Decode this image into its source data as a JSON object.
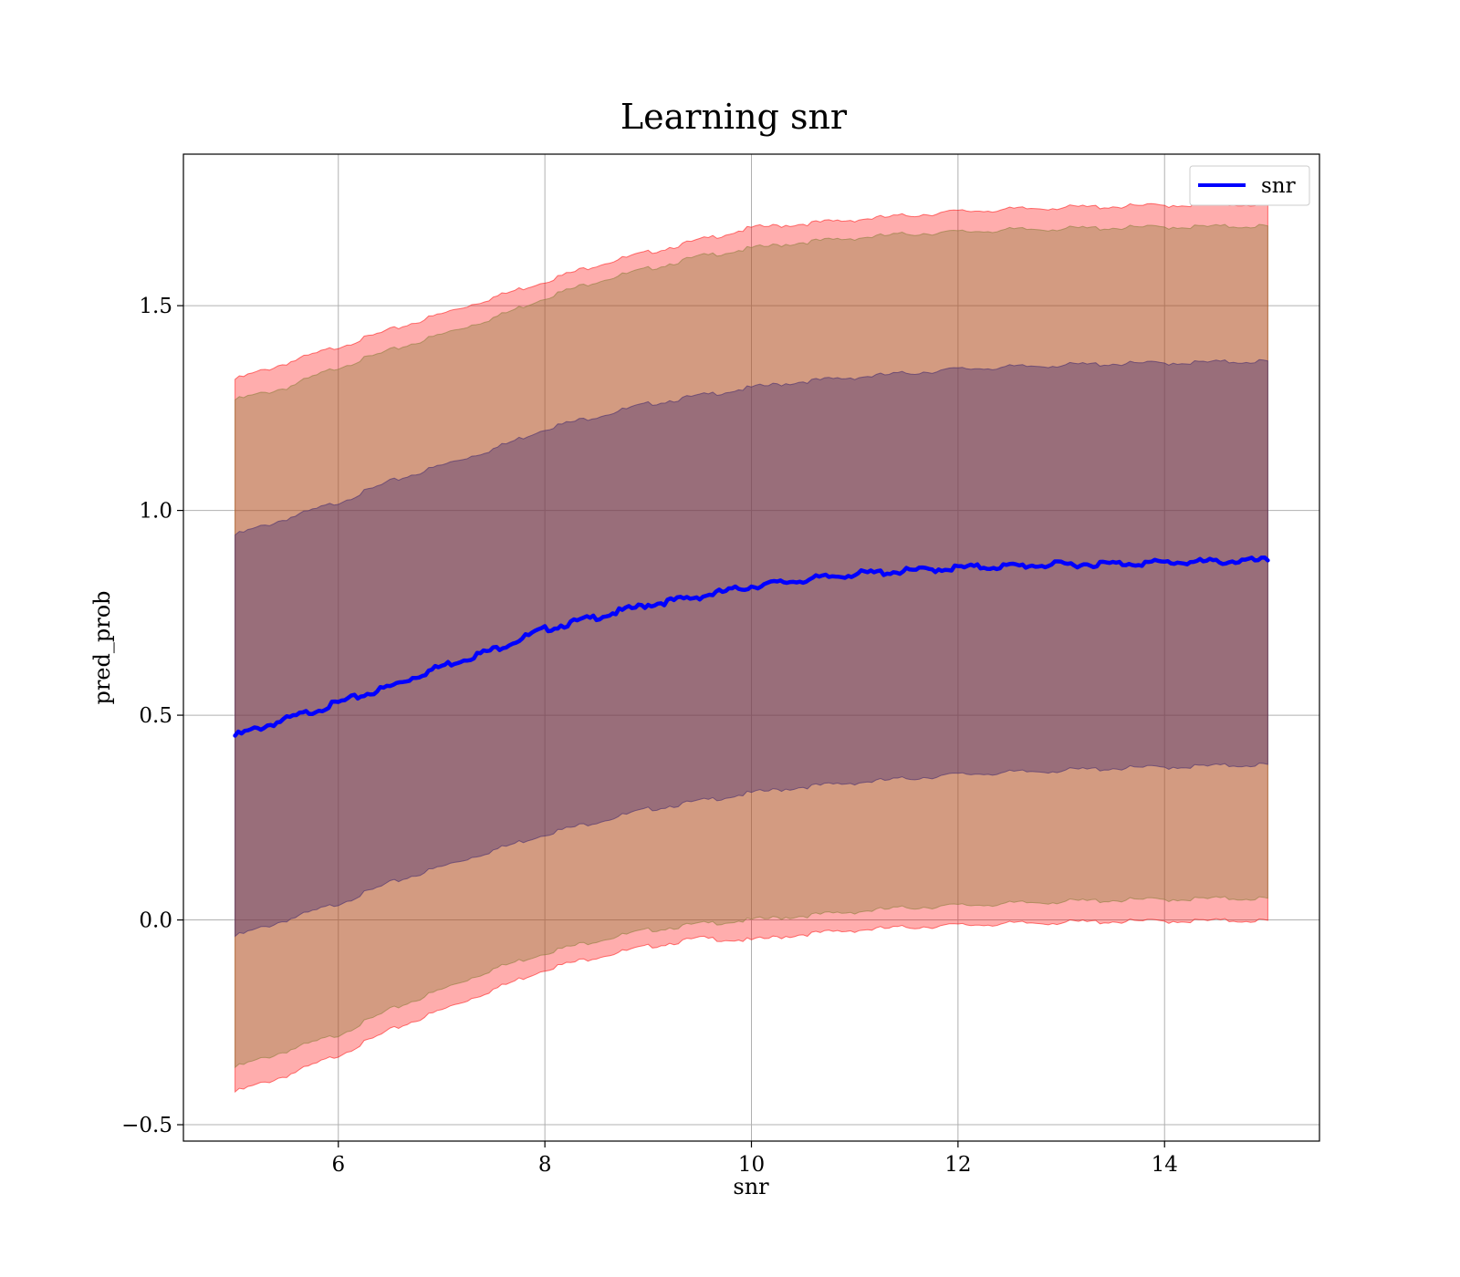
{
  "chart_data": {
    "type": "area",
    "title": "Learning snr",
    "xlabel": "snr",
    "ylabel": "pred_prob",
    "xlim": [
      4.5,
      15.5
    ],
    "ylim": [
      -0.54,
      1.87
    ],
    "xticks": [
      6,
      8,
      10,
      12,
      14
    ],
    "xtick_labels": [
      "6",
      "8",
      "10",
      "12",
      "14"
    ],
    "yticks": [
      -0.5,
      0.0,
      0.5,
      1.0,
      1.5
    ],
    "ytick_labels": [
      "−0.5",
      "0.0",
      "0.5",
      "1.0",
      "1.5"
    ],
    "grid": true,
    "legend": {
      "position": "top-right",
      "entries": [
        "snr"
      ]
    },
    "x": [
      5,
      5.5,
      6,
      6.5,
      7,
      7.5,
      8,
      8.5,
      9,
      9.5,
      10,
      10.5,
      11,
      11.5,
      12,
      12.5,
      13,
      13.5,
      14,
      14.5,
      15
    ],
    "series": [
      {
        "name": "snr",
        "kind": "line",
        "color": "#0000ff",
        "values": [
          0.45,
          0.49,
          0.53,
          0.57,
          0.62,
          0.66,
          0.71,
          0.74,
          0.77,
          0.79,
          0.815,
          0.83,
          0.845,
          0.852,
          0.86,
          0.864,
          0.868,
          0.87,
          0.873,
          0.875,
          0.878
        ]
      }
    ],
    "bands": [
      {
        "kind": "band",
        "color": "#ff0000",
        "opacity": 0.32,
        "lower": [
          -0.42,
          -0.38,
          -0.33,
          -0.27,
          -0.22,
          -0.17,
          -0.12,
          -0.09,
          -0.065,
          -0.045,
          -0.05,
          -0.035,
          -0.025,
          -0.018,
          -0.013,
          -0.009,
          -0.006,
          -0.004,
          -0.003,
          -0.002,
          -0.001
        ],
        "upper": [
          1.32,
          1.36,
          1.4,
          1.44,
          1.48,
          1.52,
          1.56,
          1.6,
          1.63,
          1.66,
          1.69,
          1.7,
          1.71,
          1.72,
          1.73,
          1.735,
          1.74,
          1.742,
          1.745,
          1.747,
          1.748
        ]
      },
      {
        "kind": "band",
        "color": "#8b7d3a",
        "opacity": 0.38,
        "lower": [
          -0.36,
          -0.32,
          -0.28,
          -0.22,
          -0.17,
          -0.12,
          -0.08,
          -0.05,
          -0.025,
          -0.01,
          0.0,
          0.01,
          0.02,
          0.03,
          0.035,
          0.04,
          0.045,
          0.048,
          0.05,
          0.052,
          0.053
        ],
        "upper": [
          1.27,
          1.3,
          1.35,
          1.39,
          1.43,
          1.47,
          1.52,
          1.56,
          1.59,
          1.62,
          1.64,
          1.655,
          1.665,
          1.675,
          1.68,
          1.685,
          1.688,
          1.69,
          1.692,
          1.693,
          1.695
        ]
      },
      {
        "kind": "band",
        "color": "#4a3070",
        "opacity": 0.42,
        "lower": [
          -0.04,
          0.0,
          0.04,
          0.09,
          0.13,
          0.17,
          0.21,
          0.24,
          0.27,
          0.29,
          0.31,
          0.325,
          0.335,
          0.345,
          0.355,
          0.36,
          0.365,
          0.37,
          0.373,
          0.376,
          0.38
        ],
        "upper": [
          0.94,
          0.98,
          1.02,
          1.07,
          1.11,
          1.15,
          1.2,
          1.23,
          1.26,
          1.28,
          1.3,
          1.315,
          1.325,
          1.335,
          1.345,
          1.35,
          1.355,
          1.358,
          1.36,
          1.362,
          1.365
        ]
      }
    ]
  }
}
